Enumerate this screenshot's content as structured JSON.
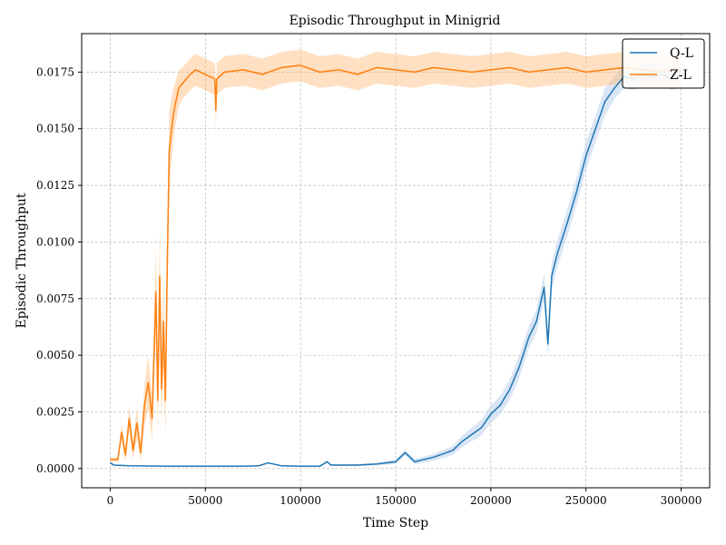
{
  "chart_data": {
    "type": "line",
    "title": "Episodic Throughput in Minigrid",
    "xlabel": "Time Step",
    "ylabel": "Episodic Throughput",
    "xlim": [
      -15000,
      315000
    ],
    "ylim": [
      -0.00085,
      0.0192
    ],
    "grid": true,
    "legend_position": "top-right",
    "x_ticks": [
      0,
      50000,
      100000,
      150000,
      200000,
      250000,
      300000
    ],
    "x_tick_labels": [
      "0",
      "50000",
      "100000",
      "150000",
      "200000",
      "250000",
      "300000"
    ],
    "y_ticks": [
      0,
      0.0025,
      0.005,
      0.0075,
      0.01,
      0.0125,
      0.015,
      0.0175
    ],
    "y_tick_labels": [
      "0.0000",
      "0.0025",
      "0.0050",
      "0.0075",
      "0.0100",
      "0.0125",
      "0.0150",
      "0.0175"
    ],
    "series": [
      {
        "name": "Q-L",
        "color": "#1f77b4",
        "band_color": "#aec7e8",
        "x": [
          0,
          2000,
          10000,
          30000,
          50000,
          70000,
          78000,
          83000,
          90000,
          100000,
          110000,
          114000,
          116000,
          130000,
          140000,
          150000,
          155000,
          160000,
          170000,
          180000,
          185000,
          190000,
          195000,
          200000,
          205000,
          210000,
          215000,
          220000,
          224000,
          228000,
          230000,
          232000,
          235000,
          240000,
          245000,
          250000,
          255000,
          260000,
          265000,
          270000,
          275000,
          280000,
          285000,
          290000,
          295000,
          300000
        ],
        "y": [
          0.00025,
          0.00015,
          0.00012,
          0.0001,
          0.0001,
          0.0001,
          0.00012,
          0.00025,
          0.00012,
          0.0001,
          0.0001,
          0.0003,
          0.00015,
          0.00015,
          0.0002,
          0.0003,
          0.0007,
          0.0003,
          0.0005,
          0.0008,
          0.0012,
          0.0015,
          0.0018,
          0.0024,
          0.0028,
          0.0035,
          0.0045,
          0.0058,
          0.0065,
          0.008,
          0.0055,
          0.0085,
          0.0095,
          0.0108,
          0.0122,
          0.0138,
          0.015,
          0.0162,
          0.0168,
          0.0173,
          0.0172,
          0.0174,
          0.0173,
          0.0174,
          0.0172,
          0.0173
        ],
        "band": [
          2e-05,
          2e-05,
          2e-05,
          2e-05,
          2e-05,
          2e-05,
          3e-05,
          3e-05,
          3e-05,
          3e-05,
          3e-05,
          3e-05,
          3e-05,
          5e-05,
          6e-05,
          0.0001,
          0.00012,
          0.00012,
          0.00015,
          0.0002,
          0.00025,
          0.0003,
          0.00035,
          0.0004,
          0.0004,
          0.00045,
          0.0005,
          0.0005,
          0.0005,
          0.0006,
          0.0006,
          0.0006,
          0.0006,
          0.0006,
          0.0006,
          0.0006,
          0.0006,
          0.0006,
          0.0005,
          0.0005,
          0.0005,
          0.0005,
          0.0005,
          0.0005,
          0.0005,
          0.0005
        ]
      },
      {
        "name": "Z-L",
        "color": "#ff7f0e",
        "band_color": "#ffbb78",
        "x": [
          0,
          2000,
          4000,
          6000,
          8000,
          10000,
          12000,
          14000,
          16000,
          18000,
          20000,
          22000,
          24000,
          25000,
          26000,
          27000,
          28000,
          29000,
          30000,
          31000,
          32000,
          33000,
          34000,
          36000,
          38000,
          40000,
          42000,
          45000,
          50000,
          55000,
          55500,
          56000,
          60000,
          70000,
          80000,
          90000,
          100000,
          110000,
          120000,
          130000,
          140000,
          150000,
          160000,
          170000,
          180000,
          190000,
          200000,
          210000,
          220000,
          230000,
          240000,
          250000,
          260000,
          270000,
          280000,
          290000,
          300000
        ],
        "y": [
          0.0004,
          0.0004,
          0.0004,
          0.0016,
          0.0006,
          0.0022,
          0.0008,
          0.002,
          0.0007,
          0.0028,
          0.0038,
          0.0022,
          0.0078,
          0.003,
          0.0085,
          0.0035,
          0.0065,
          0.003,
          0.009,
          0.014,
          0.0148,
          0.0155,
          0.016,
          0.0168,
          0.017,
          0.0172,
          0.0174,
          0.0176,
          0.0174,
          0.0172,
          0.0158,
          0.0172,
          0.0175,
          0.0176,
          0.0174,
          0.0177,
          0.0178,
          0.0175,
          0.0176,
          0.0174,
          0.0177,
          0.0176,
          0.0175,
          0.0177,
          0.0176,
          0.0175,
          0.0176,
          0.0177,
          0.0175,
          0.0176,
          0.0177,
          0.0175,
          0.0176,
          0.0177,
          0.0176,
          0.0175,
          0.0176
        ],
        "band": [
          0.0001,
          0.0001,
          0.0001,
          0.0004,
          0.0003,
          0.0006,
          0.0004,
          0.0007,
          0.0004,
          0.0009,
          0.0012,
          0.001,
          0.002,
          0.0015,
          0.002,
          0.0015,
          0.002,
          0.0015,
          0.002,
          0.0018,
          0.0015,
          0.0012,
          0.001,
          0.0008,
          0.0007,
          0.0007,
          0.0007,
          0.0007,
          0.0007,
          0.0007,
          0.0009,
          0.0007,
          0.0007,
          0.0007,
          0.0007,
          0.0007,
          0.0007,
          0.0007,
          0.0007,
          0.0007,
          0.0007,
          0.0007,
          0.0007,
          0.0007,
          0.0007,
          0.0007,
          0.0007,
          0.0007,
          0.0007,
          0.0007,
          0.0007,
          0.0007,
          0.0007,
          0.0007,
          0.0007,
          0.0007,
          0.0007
        ]
      }
    ]
  }
}
